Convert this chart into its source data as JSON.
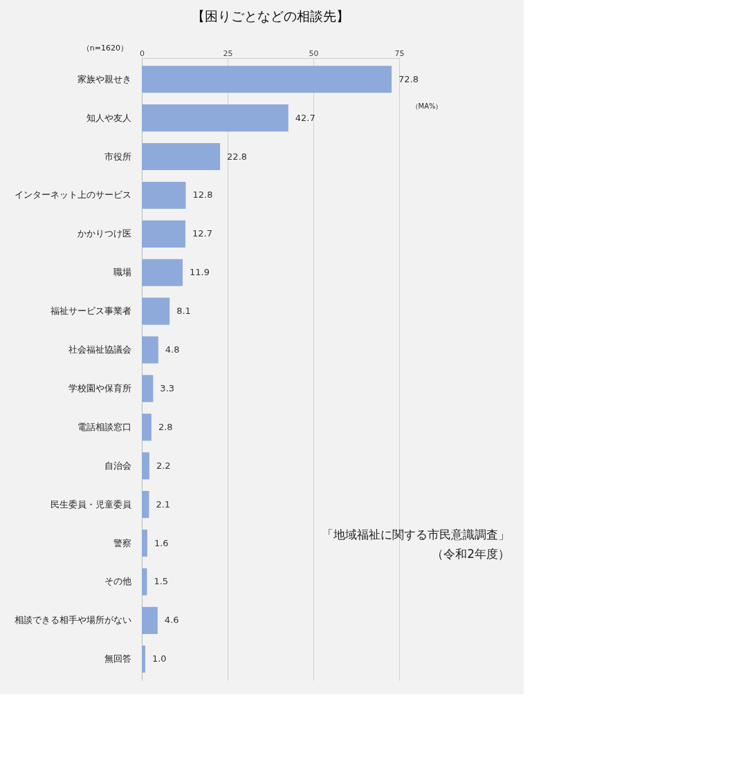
{
  "chart_data": {
    "type": "bar",
    "orientation": "horizontal",
    "title": "【困りごとなどの相談先】",
    "categories": [
      "家族や親せき",
      "知人や友人",
      "市役所",
      "インターネット上のサービス",
      "かかりつけ医",
      "職場",
      "福祉サービス事業者",
      "社会福祉協議会",
      "学校園や保育所",
      "電話相談窓口",
      "自治会",
      "民生委員・児童委員",
      "警察",
      "その他",
      "相談できる相手や場所がない",
      "無回答"
    ],
    "values": [
      72.8,
      42.7,
      22.8,
      12.8,
      12.7,
      11.9,
      8.1,
      4.8,
      3.3,
      2.8,
      2.2,
      2.1,
      1.6,
      1.5,
      4.6,
      1.0
    ],
    "value_labels": [
      "72.8",
      "42.7",
      "22.8",
      "12.8",
      "12.7",
      "11.9",
      "8.1",
      "4.8",
      "3.3",
      "2.8",
      "2.2",
      "2.1",
      "1.6",
      "1.5",
      "4.6",
      "1.0"
    ],
    "color": "#8eaadb",
    "xlim": [
      0,
      75
    ],
    "xticks": [
      0,
      25,
      50,
      75
    ],
    "grid": "x",
    "annotations": [
      "（n=1620）",
      "（MA%）",
      "「地域福祉に関する市民意識調査」",
      "（令和2年度）"
    ]
  }
}
